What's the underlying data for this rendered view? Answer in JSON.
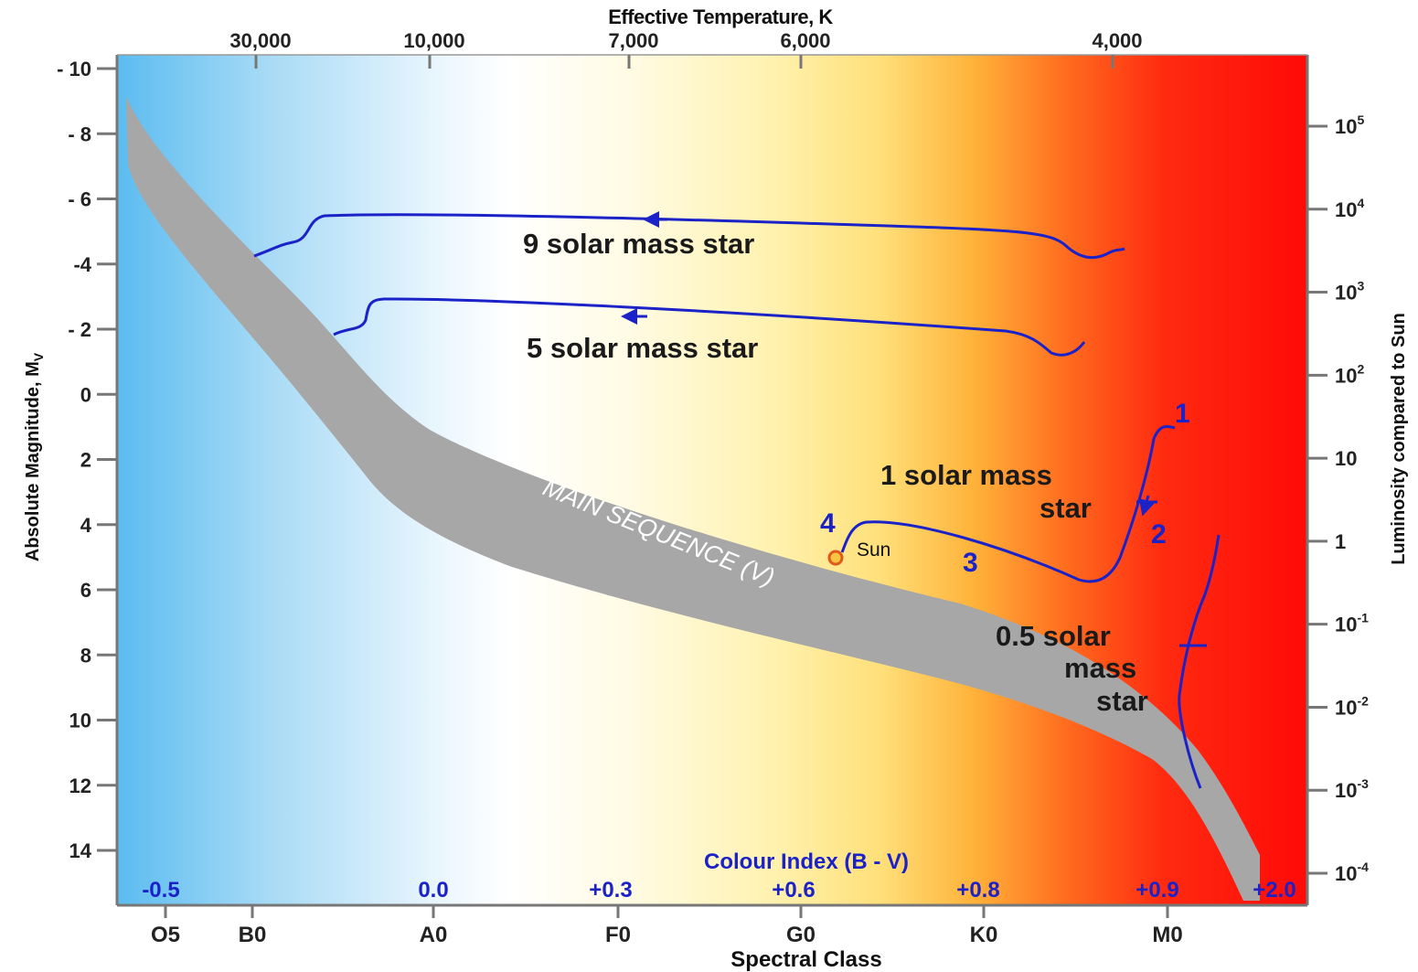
{
  "chart_data": {
    "type": "line",
    "top_axis": {
      "title": "Effective Temperature, K",
      "ticks": [
        "30,000",
        "10,000",
        "7,000",
        "6,000",
        "4,000"
      ]
    },
    "left_axis": {
      "title": "Absolute Magnitude, M",
      "title_subscript": "V",
      "ticks": [
        "- 10",
        "- 8",
        "- 6",
        "-4",
        "- 2",
        "0",
        "2",
        "4",
        "6",
        "8",
        "10",
        "12",
        "14"
      ],
      "range": [
        -10,
        15
      ]
    },
    "right_axis": {
      "title": "Luminosity compared to Sun",
      "ticks": [
        {
          "base": "10",
          "exp": "5"
        },
        {
          "base": "10",
          "exp": "4"
        },
        {
          "base": "10",
          "exp": "3"
        },
        {
          "base": "10",
          "exp": "2"
        },
        {
          "base": "10",
          "exp": ""
        },
        {
          "base": "1",
          "exp": ""
        },
        {
          "base": "10",
          "exp": "-1"
        },
        {
          "base": "10",
          "exp": "-2"
        },
        {
          "base": "10",
          "exp": "-3"
        },
        {
          "base": "10",
          "exp": "-4"
        }
      ]
    },
    "bottom_axis": {
      "title": "Spectral Class",
      "ticks": [
        "O5",
        "B0",
        "A0",
        "F0",
        "G0",
        "K0",
        "M0"
      ]
    },
    "colour_index": {
      "title": "Colour Index (B - V)",
      "values": [
        "-0.5",
        "0.0",
        "+0.3",
        "+0.6",
        "+0.8",
        "+0.9",
        "+2.0"
      ]
    },
    "main_sequence_label": "MAIN SEQUENCE (V)",
    "sun": {
      "label": "Sun",
      "spectral_class": "G2",
      "magnitude": 4.8
    },
    "series": [
      {
        "name": "9 solar mass star",
        "label_lines": [
          "9 solar mass star"
        ],
        "points": [
          [
            "B0.4",
            -4.2
          ],
          [
            "B1",
            -4.5
          ],
          [
            "B2",
            -5.2
          ],
          [
            "A5",
            -5.4
          ],
          [
            "F3",
            -5.3
          ],
          [
            "K5",
            -4.4
          ],
          [
            "K7",
            -4.3
          ],
          [
            "M0",
            -4.2
          ]
        ]
      },
      {
        "name": "5 solar mass star",
        "label_lines": [
          "5 solar mass star"
        ],
        "points": [
          [
            "B4",
            -1.8
          ],
          [
            "B6",
            -2.2
          ],
          [
            "B7",
            -2.9
          ],
          [
            "A5",
            -2.8
          ],
          [
            "F3",
            -2.3
          ],
          [
            "K5",
            -1.5
          ],
          [
            "K8",
            -1.1
          ],
          [
            "K9",
            -1.4
          ]
        ]
      },
      {
        "name": "1 solar mass star",
        "label_lines": [
          "1 solar mass",
          "star"
        ],
        "points": [
          [
            "G2",
            4.8
          ],
          [
            "G3",
            4.1
          ],
          [
            "G8",
            4.6
          ],
          [
            "K6",
            5.8
          ],
          [
            "K9",
            4.0
          ],
          [
            "M0",
            1.3
          ]
        ]
      },
      {
        "name": "0.5 solar mass star",
        "label_lines": [
          "0.5 solar",
          "mass",
          "star"
        ],
        "points": [
          [
            "M1",
            12.0
          ],
          [
            "M0.5",
            9.5
          ],
          [
            "M1",
            7.5
          ],
          [
            "M1.5",
            4.5
          ]
        ]
      }
    ],
    "stage_labels": [
      "1",
      "2",
      "3",
      "4"
    ]
  }
}
